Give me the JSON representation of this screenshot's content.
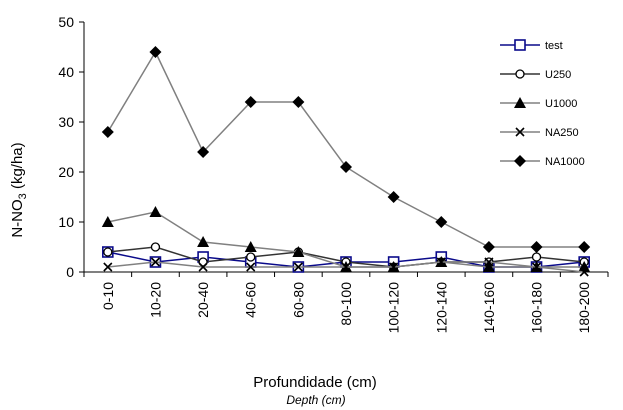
{
  "chart_data": {
    "type": "line",
    "categories": [
      "0-10",
      "10-20",
      "20-40",
      "40-60",
      "60-80",
      "80-100",
      "100-120",
      "120-140",
      "140-160",
      "160-180",
      "180-200"
    ],
    "ylim": [
      0,
      50
    ],
    "yticks": [
      0,
      10,
      20,
      30,
      40,
      50
    ],
    "ylabel": {
      "base": "N-NO",
      "sub": "3",
      "rest": " (kg/ha)"
    },
    "xlabel": "Profundidade (cm)",
    "xlabel_secondary": "Depth  (cm)",
    "grid": false,
    "legend_position": "right",
    "series": [
      {
        "name": "test",
        "color": "#0a0a8a",
        "marker": "open-square",
        "values": [
          4,
          2,
          3,
          2,
          1,
          2,
          2,
          3,
          1,
          1,
          2
        ]
      },
      {
        "name": "U250",
        "color": "#333333",
        "marker": "open-circle",
        "values": [
          4,
          5,
          2,
          3,
          4,
          2,
          1,
          2,
          2,
          3,
          2
        ]
      },
      {
        "name": "U1000",
        "color": "#808080",
        "marker": "triangle",
        "values": [
          10,
          12,
          6,
          5,
          4,
          1,
          1,
          2,
          1,
          1,
          1
        ]
      },
      {
        "name": "NA250",
        "color": "#808080",
        "marker": "x",
        "values": [
          1,
          2,
          1,
          1,
          1,
          1,
          1,
          2,
          2,
          1,
          0
        ]
      },
      {
        "name": "NA1000",
        "color": "#808080",
        "marker": "diamond",
        "values": [
          28,
          44,
          24,
          34,
          34,
          21,
          15,
          10,
          5,
          5,
          5
        ]
      }
    ]
  }
}
